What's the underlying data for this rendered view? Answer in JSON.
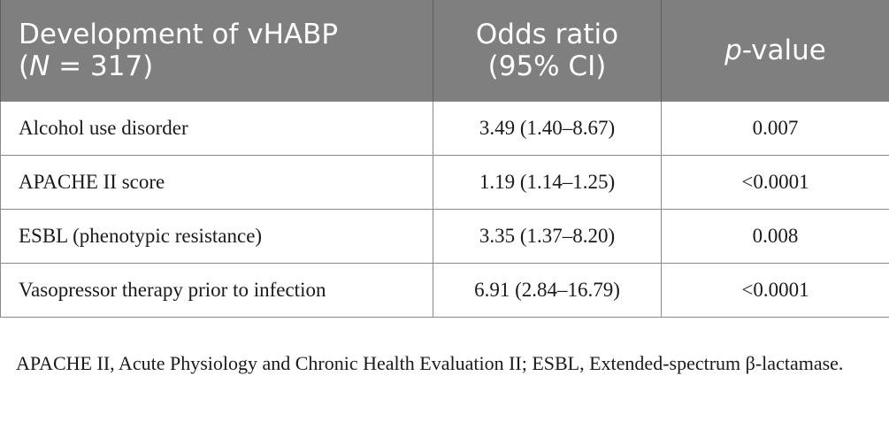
{
  "table": {
    "headers": {
      "col1_line1": "Development of vHABP",
      "col1_line2_n": "N",
      "col1_line2_rest": " = 317)",
      "col1_line2_open": "(",
      "col2_line1": "Odds ratio",
      "col2_line2": "(95% CI)",
      "col3_p": "p",
      "col3_rest": "-value"
    },
    "rows": [
      {
        "label": "Alcohol use disorder",
        "odds_ratio": "3.49 (1.40–8.67)",
        "p_value": "0.007"
      },
      {
        "label": "APACHE II score",
        "odds_ratio": "1.19 (1.14–1.25)",
        "p_value": "<0.0001"
      },
      {
        "label": "ESBL (phenotypic resistance)",
        "odds_ratio": "3.35 (1.37–8.20)",
        "p_value": "0.008"
      },
      {
        "label": "Vasopressor therapy prior to infection",
        "odds_ratio": "6.91 (2.84–16.79)",
        "p_value": "<0.0001"
      }
    ]
  },
  "footnote": "APACHE II, Acute Physiology and Chronic Health Evaluation II; ESBL, Extended-spectrum β-lactamase.",
  "colors": {
    "header_bg": "#7f7f7f",
    "header_text": "#ffffff",
    "border": "#8a8a8a"
  }
}
